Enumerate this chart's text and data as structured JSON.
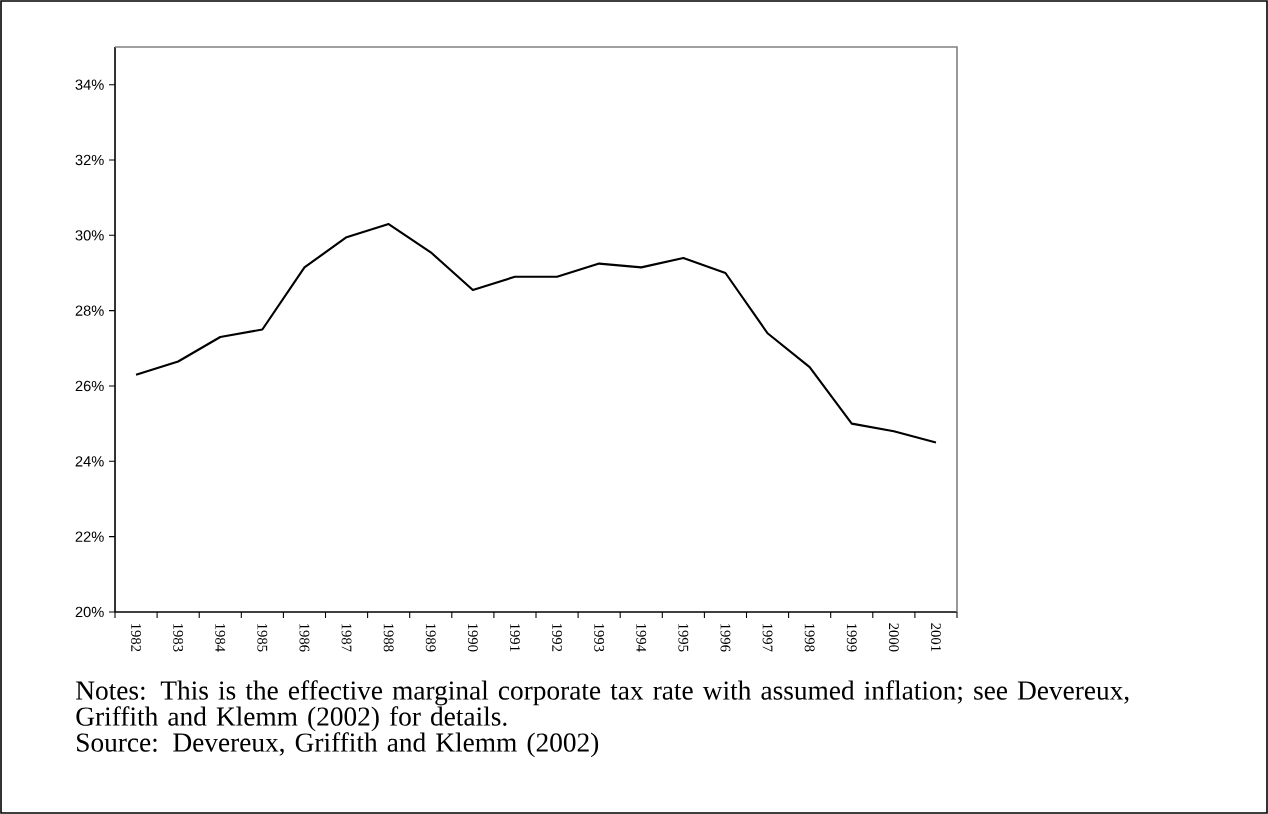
{
  "chart_data": {
    "type": "line",
    "categories": [
      "1982",
      "1983",
      "1984",
      "1985",
      "1986",
      "1987",
      "1988",
      "1989",
      "1990",
      "1991",
      "1992",
      "1993",
      "1994",
      "1995",
      "1996",
      "1997",
      "1998",
      "1999",
      "2000",
      "2001"
    ],
    "values": [
      26.3,
      26.65,
      27.3,
      27.5,
      29.15,
      29.95,
      30.3,
      29.55,
      28.55,
      28.9,
      28.9,
      29.25,
      29.15,
      29.4,
      29.0,
      27.4,
      26.5,
      25.0,
      24.8,
      24.5
    ],
    "color": "#000000",
    "ylim": [
      20,
      35
    ],
    "yticks": [
      {
        "value": 20,
        "label": "20%"
      },
      {
        "value": 22,
        "label": "22%"
      },
      {
        "value": 24,
        "label": "24%"
      },
      {
        "value": 26,
        "label": "26%"
      },
      {
        "value": 28,
        "label": "28%"
      },
      {
        "value": 30,
        "label": "30%"
      },
      {
        "value": 32,
        "label": "32%"
      },
      {
        "value": 34,
        "label": "34%"
      }
    ],
    "annotations": [
      "Notes: This is the effective marginal corporate tax rate with assumed inflation; see Devereux, Griffith and Klemm (2002) for details.",
      "Source: Devereux, Griffith and Klemm (2002)"
    ]
  }
}
